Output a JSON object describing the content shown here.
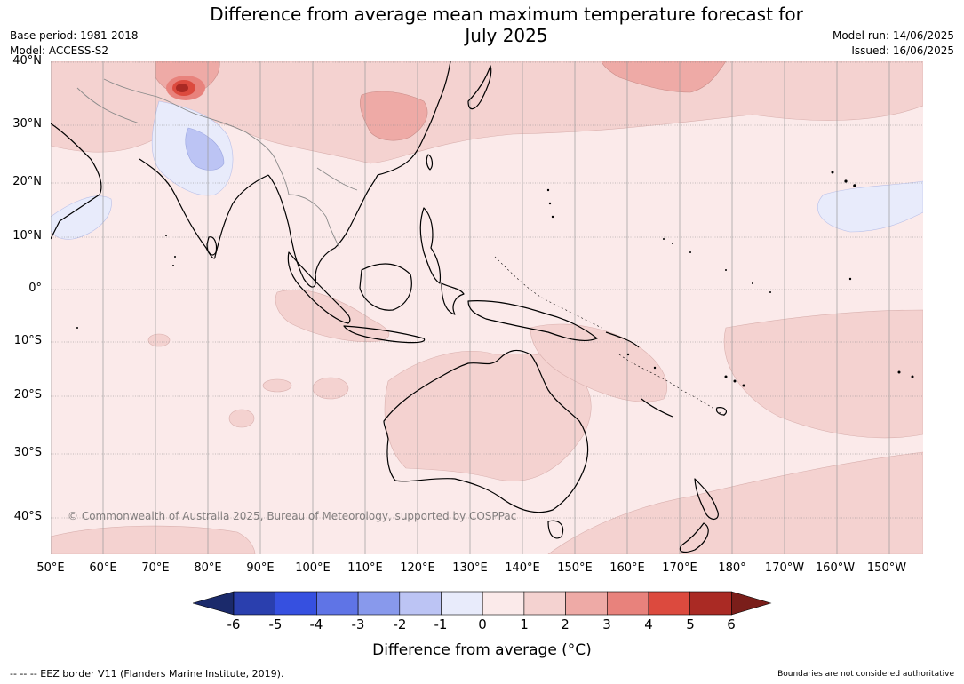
{
  "title": {
    "line1": "Difference from average mean maximum temperature forecast for",
    "line2": "July 2025"
  },
  "meta_left": {
    "base_period": "Base period: 1981-2018",
    "model": "Model: ACCESS-S2"
  },
  "meta_right": {
    "model_run": "Model run: 14/06/2025",
    "issued": "Issued: 16/06/2025"
  },
  "map": {
    "lat_labels": [
      "40°N",
      "30°N",
      "20°N",
      "10°N",
      "0°",
      "10°S",
      "20°S",
      "30°S",
      "40°S"
    ],
    "lon_labels": [
      "50°E",
      "60°E",
      "70°E",
      "80°E",
      "90°E",
      "100°E",
      "110°E",
      "120°E",
      "130°E",
      "140°E",
      "150°E",
      "160°E",
      "170°E",
      "180°",
      "170°W",
      "160°W",
      "150°W"
    ],
    "credit": "© Commonwealth of Australia 2025, Bureau of Meteorology, supported by COSPPac"
  },
  "colorbar": {
    "ticks": [
      "-6",
      "-5",
      "-4",
      "-3",
      "-2",
      "-1",
      "0",
      "1",
      "2",
      "3",
      "4",
      "5",
      "6"
    ],
    "colors": [
      "#1b2a6b",
      "#2a3fae",
      "#3650e0",
      "#5f74e6",
      "#8899ec",
      "#bcc4f4",
      "#e8ebfb",
      "#fbeaea",
      "#f4d2d0",
      "#eeaaa6",
      "#e8827c",
      "#dc4a3e",
      "#aa2a24",
      "#7a1e1a"
    ],
    "label": "Difference from average (°C)"
  },
  "footer": {
    "left": "--  --  -- EEZ border V11 (Flanders Marine Institute, 2019).",
    "right": "Boundaries are not considered authoritative"
  }
}
